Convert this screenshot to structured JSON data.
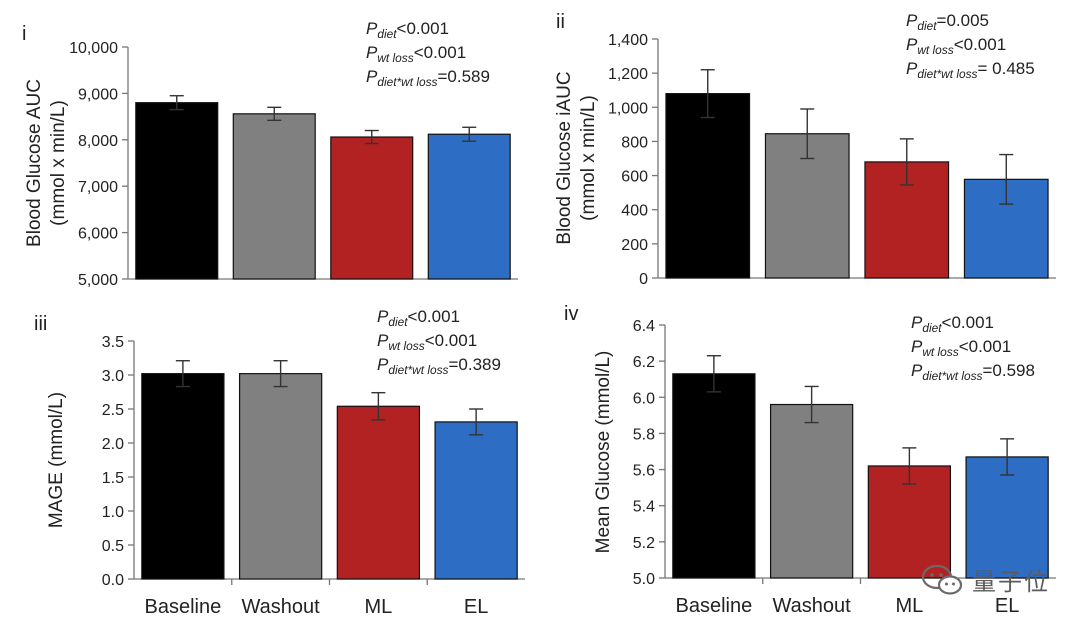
{
  "panels": [
    {
      "id": "i",
      "panel_label": "i",
      "ylabel_lines": [
        "Blood Glucose AUC",
        "(mmol x min/L)"
      ],
      "y_tick_labels": [
        "5,000",
        "6,000",
        "7,000",
        "8,000",
        "9,000",
        "10,000"
      ],
      "stats": [
        {
          "P": "P",
          "sub": "diet",
          "rest": "<0.001"
        },
        {
          "P": "P",
          "sub": "wt loss",
          "rest": "<0.001"
        },
        {
          "P": "P",
          "sub": "diet*wt loss",
          "rest": "=0.589"
        }
      ]
    },
    {
      "id": "ii",
      "panel_label": "ii",
      "ylabel_lines": [
        "Blood Glucose iAUC",
        "(mmol x min/L)"
      ],
      "y_tick_labels": [
        "0",
        "200",
        "400",
        "600",
        "800",
        "1,000",
        "1,200",
        "1,400"
      ],
      "stats": [
        {
          "P": "P",
          "sub": "diet",
          "rest": "=0.005"
        },
        {
          "P": "P",
          "sub": "wt loss",
          "rest": "<0.001"
        },
        {
          "P": "P",
          "sub": "diet*wt loss",
          "rest": "= 0.485"
        }
      ]
    },
    {
      "id": "iii",
      "panel_label": "iii",
      "ylabel_lines": [
        "MAGE (mmol/L)"
      ],
      "y_tick_labels": [
        "0.0",
        "0.5",
        "1.0",
        "1.5",
        "2.0",
        "2.5",
        "3.0",
        "3.5"
      ],
      "stats": [
        {
          "P": "P",
          "sub": "diet",
          "rest": "<0.001"
        },
        {
          "P": "P",
          "sub": "wt loss",
          "rest": "<0.001"
        },
        {
          "P": "P",
          "sub": "diet*wt loss",
          "rest": "=0.389"
        }
      ]
    },
    {
      "id": "iv",
      "panel_label": "iv",
      "ylabel_lines": [
        "Mean Glucose  (mmol/L)"
      ],
      "y_tick_labels": [
        "5.0",
        "5.2",
        "5.4",
        "5.6",
        "5.8",
        "6.0",
        "6.2",
        "6.4"
      ],
      "stats": [
        {
          "P": "P",
          "sub": "diet",
          "rest": "<0.001"
        },
        {
          "P": "P",
          "sub": "wt loss",
          "rest": "<0.001"
        },
        {
          "P": "P",
          "sub": "diet*wt loss",
          "rest": "=0.598"
        }
      ]
    }
  ],
  "watermark": {
    "text": "量子位",
    "logo_icon": "wechat-logo-icon"
  },
  "chart_data": [
    {
      "type": "bar",
      "title": "i",
      "categories": [
        "Baseline",
        "Washout",
        "ML",
        "EL"
      ],
      "values": [
        8800,
        8560,
        8060,
        8120
      ],
      "errors": [
        150,
        140,
        140,
        150
      ],
      "colors": [
        "#000000",
        "#808080",
        "#b22222",
        "#2e6dc4"
      ],
      "ylabel": "Blood Glucose AUC (mmol x min/L)",
      "ylim": [
        5000,
        10000
      ],
      "ytick_step": 1000,
      "show_category_labels": false
    },
    {
      "type": "bar",
      "title": "ii",
      "categories": [
        "Baseline",
        "Washout",
        "ML",
        "EL"
      ],
      "values": [
        1080,
        845,
        680,
        578
      ],
      "errors": [
        140,
        145,
        135,
        145
      ],
      "colors": [
        "#000000",
        "#808080",
        "#b22222",
        "#2e6dc4"
      ],
      "ylabel": "Blood Glucose iAUC (mmol x min/L)",
      "ylim": [
        0,
        1400
      ],
      "ytick_step": 200,
      "show_category_labels": false
    },
    {
      "type": "bar",
      "title": "iii",
      "categories": [
        "Baseline",
        "Washout",
        "ML",
        "EL"
      ],
      "values": [
        3.02,
        3.02,
        2.54,
        2.31
      ],
      "errors": [
        0.19,
        0.19,
        0.2,
        0.19
      ],
      "colors": [
        "#000000",
        "#808080",
        "#b22222",
        "#2e6dc4"
      ],
      "ylabel": "MAGE (mmol/L)",
      "ylim": [
        0,
        3.5
      ],
      "ytick_step": 0.5,
      "show_category_labels": true
    },
    {
      "type": "bar",
      "title": "iv",
      "categories": [
        "Baseline",
        "Washout",
        "ML",
        "EL"
      ],
      "values": [
        6.13,
        5.96,
        5.62,
        5.67
      ],
      "errors": [
        0.1,
        0.1,
        0.1,
        0.1
      ],
      "colors": [
        "#000000",
        "#808080",
        "#b22222",
        "#2e6dc4"
      ],
      "ylabel": "Mean Glucose (mmol/L)",
      "ylim": [
        5.0,
        6.4
      ],
      "ytick_step": 0.2,
      "show_category_labels": true
    }
  ]
}
